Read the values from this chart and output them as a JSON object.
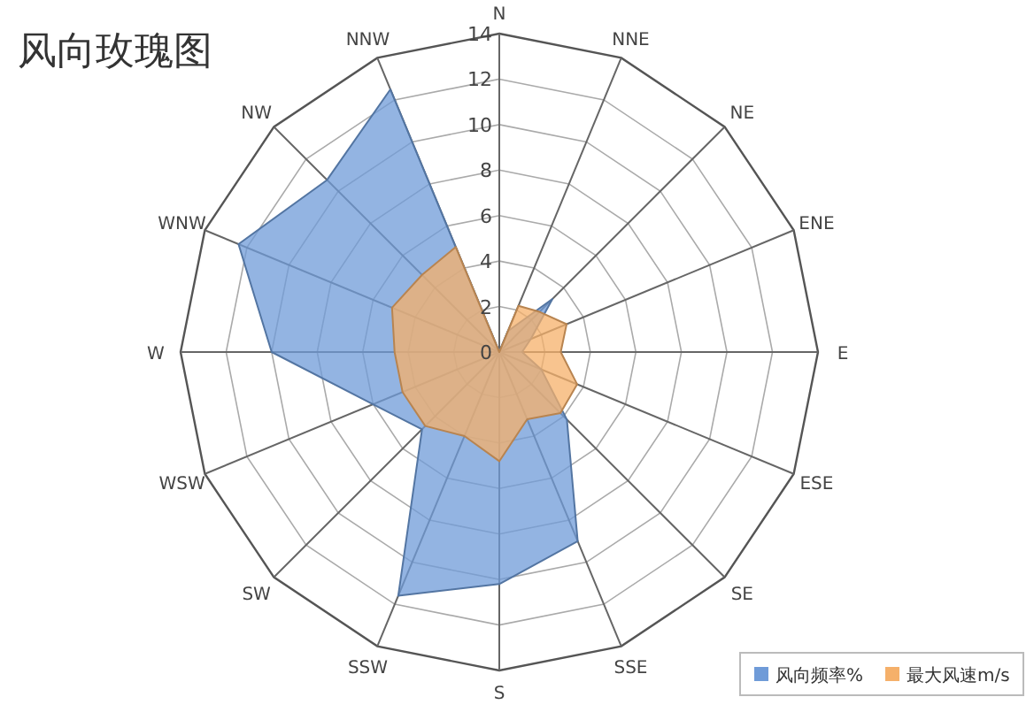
{
  "chart_data": {
    "type": "radar",
    "title": "风向玫瑰图",
    "categories": [
      "N",
      "NNE",
      "NE",
      "ENE",
      "E",
      "ESE",
      "SE",
      "SSE",
      "S",
      "SSW",
      "SW",
      "WSW",
      "W",
      "WNW",
      "NW",
      "NNW"
    ],
    "series": [
      {
        "name": "风向频率%",
        "color": "#6f9bd8",
        "values": [
          0,
          1,
          3.3,
          1.5,
          1,
          2,
          4.2,
          9,
          10.2,
          11.6,
          4.8,
          6,
          10,
          12.4,
          10.7,
          12.5
        ]
      },
      {
        "name": "最大风速m/s",
        "color": "#f5b06a",
        "values": [
          0,
          2.2,
          2.5,
          3.2,
          2.7,
          3.7,
          3.8,
          3.2,
          4.8,
          4,
          4.6,
          4.6,
          4.6,
          5.1,
          4.8,
          5
        ]
      }
    ],
    "ylim": [
      0,
      14
    ],
    "yticks": [
      0,
      2,
      4,
      6,
      8,
      10,
      12,
      14
    ],
    "grid": true,
    "legend": "bottom right"
  }
}
